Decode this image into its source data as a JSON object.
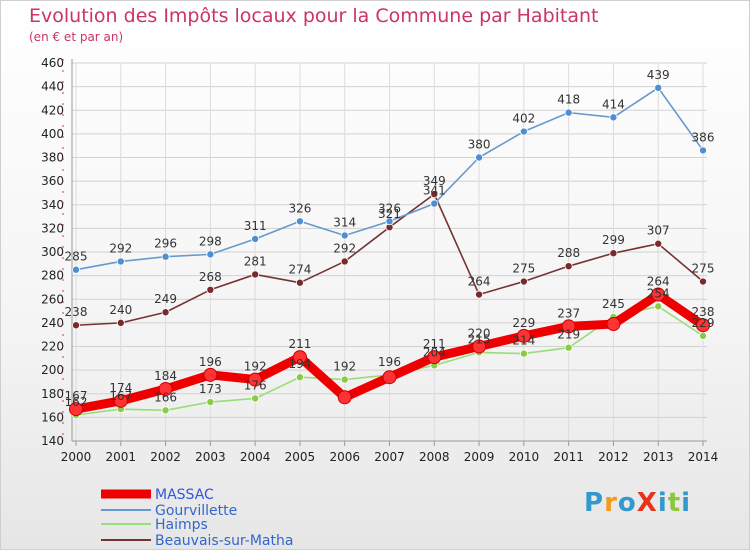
{
  "header": {
    "title": "Evolution des Impôts locaux pour la Commune par Habitant",
    "subtitle": "(en € et par an)"
  },
  "logo": {
    "text": "ProXiti",
    "letters": [
      "P",
      "r",
      "o",
      "X",
      "i",
      "t",
      "i"
    ],
    "colors": [
      "#3399cc",
      "#f29a1c",
      "#3399cc",
      "#e6331a",
      "#3399cc",
      "#8cc63f",
      "#3399cc"
    ]
  },
  "chart_data": {
    "type": "line",
    "title": "Evolution des Impôts locaux pour la Commune par Habitant",
    "subtitle": "(en € et par an)",
    "x": [
      "2000",
      "2001",
      "2002",
      "2003",
      "2004",
      "2005",
      "2006",
      "2007",
      "2008",
      "2009",
      "2010",
      "2011",
      "2012",
      "2013",
      "2014"
    ],
    "ylim": [
      140,
      460
    ],
    "yticks": [
      140,
      160,
      180,
      200,
      220,
      240,
      260,
      280,
      300,
      320,
      340,
      360,
      380,
      400,
      420,
      440,
      460
    ],
    "grid": true,
    "legend_position": "bottom-left",
    "series": [
      {
        "name": "MASSAC",
        "color": "#ee0000",
        "marker_color": "#ff3333",
        "labels_visible": true,
        "values": [
          167,
          174,
          184,
          196,
          192,
          211,
          177,
          194,
          211,
          220,
          229,
          237,
          239,
          264,
          238
        ],
        "labels": [
          "167",
          "174",
          "184",
          "196",
          "192",
          "211",
          "",
          "",
          "211",
          "220",
          "229",
          "237",
          "",
          "264",
          "238"
        ]
      },
      {
        "name": "Gourvillette",
        "color": "#6699cc",
        "marker_color": "#4f8fd1",
        "values": [
          285,
          292,
          296,
          298,
          311,
          326,
          314,
          326,
          341,
          380,
          402,
          418,
          414,
          439,
          386
        ],
        "labels": [
          "285",
          "292",
          "296",
          "298",
          "311",
          "326",
          "314",
          "326",
          "341",
          "380",
          "402",
          "418",
          "414",
          "439",
          "386"
        ]
      },
      {
        "name": "Haimps",
        "color": "#99dd77",
        "marker_color": "#88cc44",
        "values": [
          162,
          167,
          166,
          173,
          176,
          194,
          192,
          196,
          204,
          215,
          214,
          219,
          245,
          254,
          229
        ],
        "labels": [
          "162",
          "167",
          "166",
          "173",
          "176",
          "194",
          "192",
          "196",
          "204",
          "215",
          "214",
          "219",
          "245",
          "254",
          "229"
        ]
      },
      {
        "name": "Beauvais-sur-Matha",
        "color": "#773333",
        "marker_color": "#7a2a2a",
        "values": [
          238,
          240,
          249,
          268,
          281,
          274,
          292,
          321,
          349,
          264,
          275,
          288,
          299,
          307,
          275
        ],
        "labels": [
          "238",
          "240",
          "249",
          "268",
          "281",
          "274",
          "292",
          "321",
          "349",
          "264",
          "275",
          "288",
          "299",
          "307",
          "275"
        ]
      }
    ]
  }
}
